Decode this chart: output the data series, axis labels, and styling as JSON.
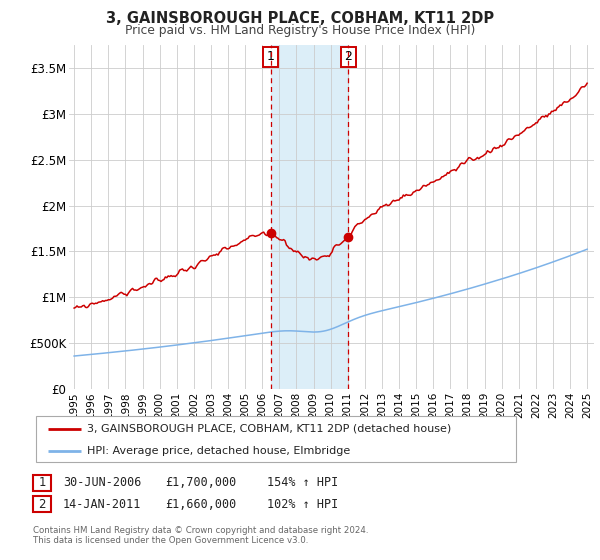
{
  "title": "3, GAINSBOROUGH PLACE, COBHAM, KT11 2DP",
  "subtitle": "Price paid vs. HM Land Registry's House Price Index (HPI)",
  "hpi_color": "#7fb3e8",
  "price_color": "#cc0000",
  "marker_color": "#cc0000",
  "bg_color": "#ffffff",
  "grid_color": "#cccccc",
  "shaded_color": "#dceef8",
  "transaction1_date": 2006.5,
  "transaction2_date": 2011.04,
  "transaction1_price": 1700000,
  "transaction2_price": 1660000,
  "transaction1_label": "1",
  "transaction2_label": "2",
  "ylim_max": 3750000,
  "ylim_min": 0,
  "xlim_min": 1994.7,
  "xlim_max": 2025.4,
  "legend_line1": "3, GAINSBOROUGH PLACE, COBHAM, KT11 2DP (detached house)",
  "legend_line2": "HPI: Average price, detached house, Elmbridge",
  "table_row1_num": "1",
  "table_row1_date": "30-JUN-2006",
  "table_row1_price": "£1,700,000",
  "table_row1_hpi": "154% ↑ HPI",
  "table_row2_num": "2",
  "table_row2_date": "14-JAN-2011",
  "table_row2_price": "£1,660,000",
  "table_row2_hpi": "102% ↑ HPI",
  "footnote1": "Contains HM Land Registry data © Crown copyright and database right 2024.",
  "footnote2": "This data is licensed under the Open Government Licence v3.0.",
  "yticks": [
    0,
    500000,
    1000000,
    1500000,
    2000000,
    2500000,
    3000000,
    3500000
  ],
  "ytick_labels": [
    "£0",
    "£500K",
    "£1M",
    "£1.5M",
    "£2M",
    "£2.5M",
    "£3M",
    "£3.5M"
  ],
  "xticks": [
    1995,
    1996,
    1997,
    1998,
    1999,
    2000,
    2001,
    2002,
    2003,
    2004,
    2005,
    2006,
    2007,
    2008,
    2009,
    2010,
    2011,
    2012,
    2013,
    2014,
    2015,
    2016,
    2017,
    2018,
    2019,
    2020,
    2021,
    2022,
    2023,
    2024,
    2025
  ]
}
